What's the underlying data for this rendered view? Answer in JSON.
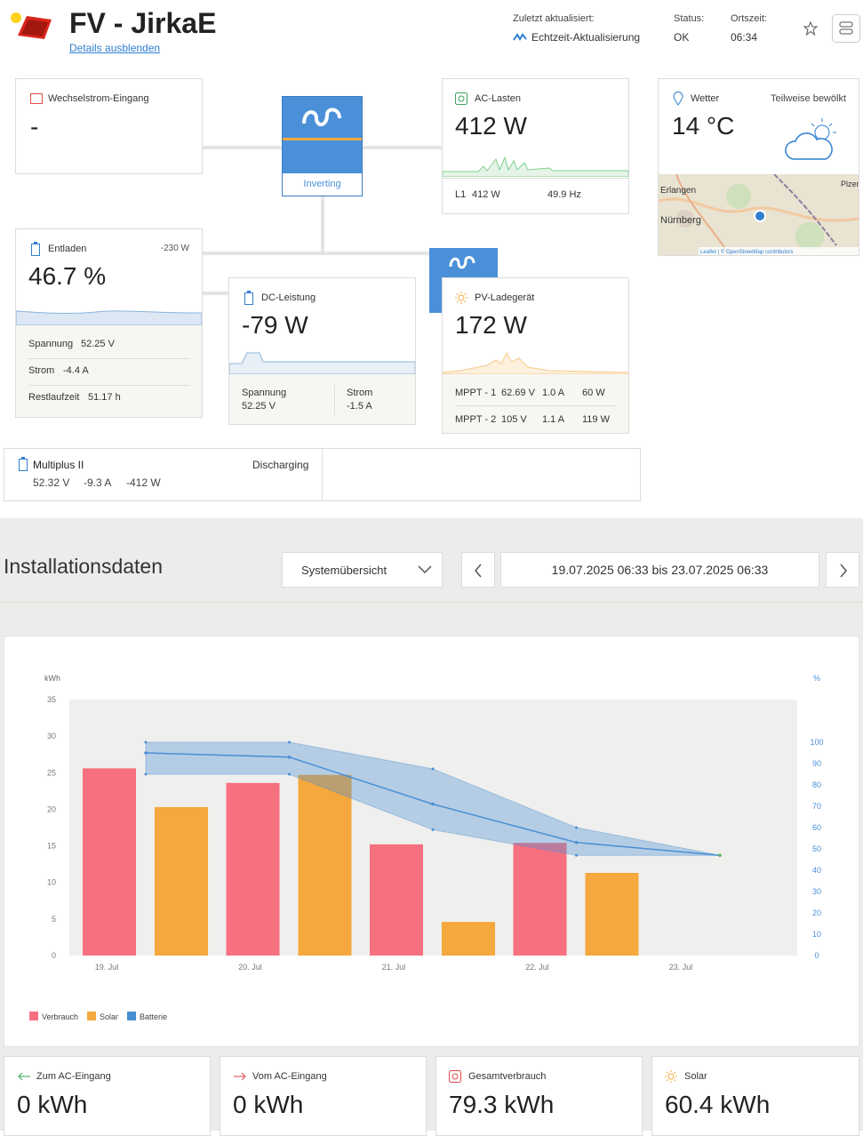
{
  "header": {
    "title": "FV - JirkaE",
    "toggle_link": "Details ausblenden",
    "updated_label": "Zuletzt aktualisiert:",
    "updated_value": "Echtzeit-Aktualisierung",
    "status_label": "Status:",
    "status_value": "OK",
    "time_label": "Ortszeit:",
    "time_value": "06:34"
  },
  "cards": {
    "ac_input": {
      "title": "Wechselstrom-Eingang",
      "value": "-"
    },
    "inverter": {
      "state": "Inverting"
    },
    "ac_loads": {
      "title": "AC-Lasten",
      "value": "412 W",
      "phase": "L1",
      "phase_power": "412 W",
      "frequency": "49.9 Hz"
    },
    "weather": {
      "title": "Wetter",
      "condition": "Teilweise bewölkt",
      "temperature": "14 °C",
      "map_labels": [
        "Erlangen",
        "Nürnberg",
        "Plzer"
      ],
      "attribution": "Leaflet | © OpenStreetMap contributors"
    },
    "battery": {
      "title": "Entladen",
      "power": "-230 W",
      "value": "46.7 %",
      "rows": [
        [
          "Spannung",
          "52.25 V"
        ],
        [
          "Strom",
          "-4.4 A"
        ],
        [
          "Restlaufzeit",
          "51.17 h"
        ]
      ]
    },
    "dc": {
      "title": "DC-Leistung",
      "value": "-79 W",
      "rows": [
        [
          "Spannung",
          "52.25 V"
        ],
        [
          "Strom",
          "-1.5 A"
        ]
      ]
    },
    "pv": {
      "title": "PV-Ladegerät",
      "value": "172 W",
      "rows": [
        [
          "MPPT - 1",
          "62.69 V",
          "1.0 A",
          "60 W"
        ],
        [
          "MPPT - 2",
          "105 V",
          "1.1 A",
          "119 W"
        ]
      ]
    },
    "multiplus": {
      "title": "Multiplus II",
      "state": "Discharging",
      "values": [
        "52.32 V",
        "-9.3 A",
        "-412 W"
      ]
    }
  },
  "installation": {
    "title": "Installationsdaten",
    "view": "Systemübersicht",
    "range": "19.07.2025 06:33 bis 23.07.2025 06:33"
  },
  "chart_data": {
    "type": "bar",
    "y_label": "kWh",
    "y2_label": "%",
    "categories": [
      "19. Jul",
      "20. Jul",
      "21. Jul",
      "22. Jul",
      "23. Jul"
    ],
    "ylim": [
      0,
      35
    ],
    "yticks": [
      0,
      5,
      10,
      15,
      20,
      25,
      30,
      35
    ],
    "y2lim": [
      0,
      120
    ],
    "y2ticks": [
      0,
      10,
      20,
      30,
      40,
      50,
      60,
      70,
      80,
      90,
      100
    ],
    "grid": false,
    "plot_background": "#efefed",
    "series": [
      {
        "name": "Verbrauch",
        "color": "#f7707f",
        "values": [
          25.6,
          23.6,
          15.2,
          15.4,
          null
        ]
      },
      {
        "name": "Solar",
        "color": "#f5a83d",
        "values": [
          20.3,
          24.7,
          4.6,
          11.3,
          null
        ]
      },
      {
        "name": "Batterie",
        "type": "line",
        "axis": "y2",
        "color": "#4a8fd4",
        "values": [
          95,
          93,
          71,
          53,
          47
        ],
        "min": [
          85,
          85,
          59,
          47,
          47
        ],
        "max": [
          100,
          100,
          87.5,
          60,
          47
        ]
      }
    ]
  },
  "totals": [
    {
      "label": "Zum AC-Eingang",
      "value": "0 kWh"
    },
    {
      "label": "Vom AC-Eingang",
      "value": "0 kWh"
    },
    {
      "label": "Gesamtverbrauch",
      "value": "79.3 kWh"
    },
    {
      "label": "Solar",
      "value": "60.4 kWh"
    }
  ]
}
